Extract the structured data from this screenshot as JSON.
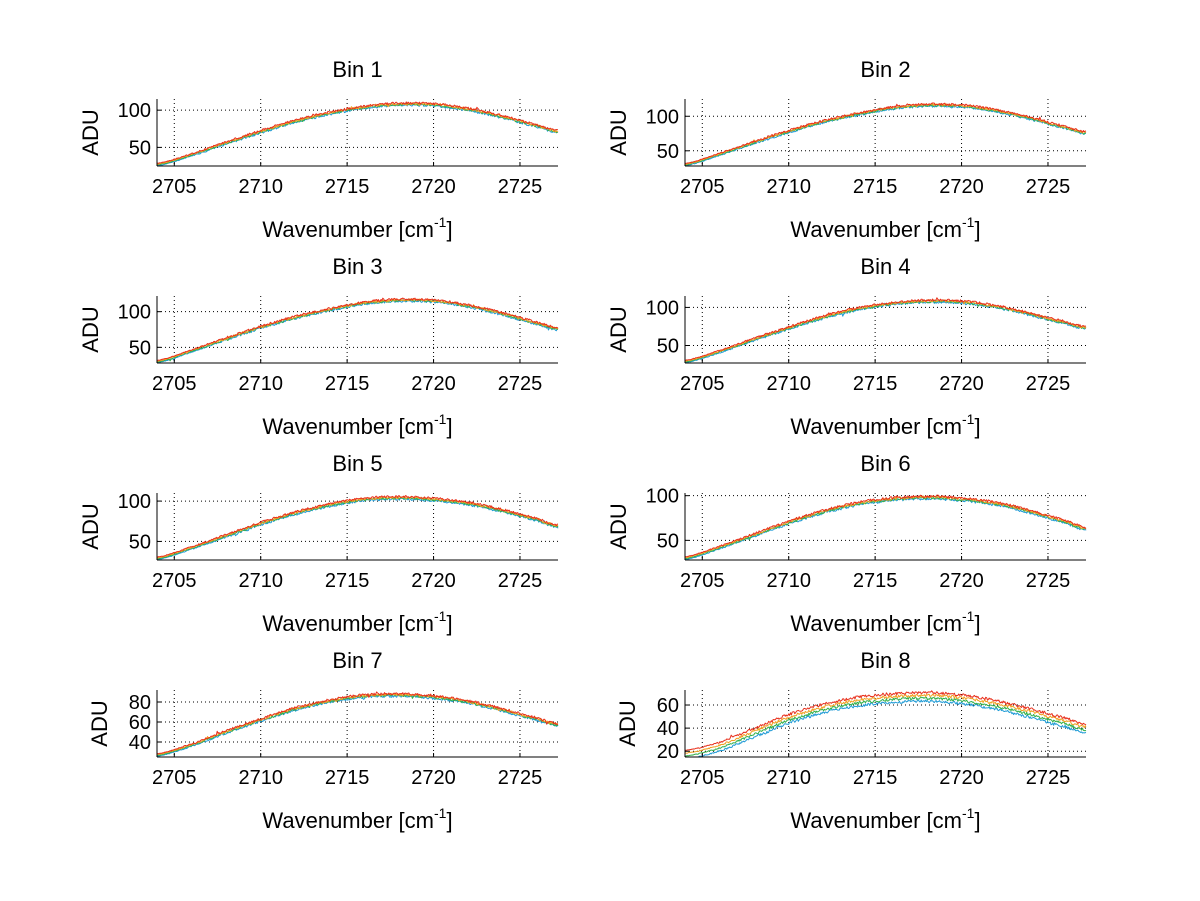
{
  "figure": {
    "background": "#ffffff"
  },
  "series_colors": [
    "#1f9bd6",
    "#33b04a",
    "#f0a020",
    "#e8301c"
  ],
  "chart_data": [
    {
      "type": "line",
      "title": "Bin 1",
      "xlabel": "Wavenumber [cm",
      "xlabel_sup": "-1",
      "xlabel_end": "]",
      "ylabel": "ADU",
      "xlim": [
        2704,
        2727.2
      ],
      "ylim": [
        25,
        115
      ],
      "xticks": [
        2705,
        2710,
        2715,
        2720,
        2725
      ],
      "yticks": [
        50,
        100
      ],
      "grid": true,
      "x": [
        2704,
        2706,
        2708,
        2710,
        2712,
        2714,
        2716,
        2718,
        2720,
        2722,
        2724,
        2726,
        2727.2
      ],
      "y": [
        27,
        40,
        56,
        71,
        85,
        96,
        104,
        108,
        107,
        101,
        91,
        79,
        71
      ],
      "series_count": 4,
      "series_spread": 1.0,
      "noise": 1.5
    },
    {
      "type": "line",
      "title": "Bin 2",
      "xlabel": "Wavenumber [cm",
      "xlabel_sup": "-1",
      "xlabel_end": "]",
      "ylabel": "ADU",
      "xlim": [
        2704,
        2727.2
      ],
      "ylim": [
        28,
        125
      ],
      "xticks": [
        2705,
        2710,
        2715,
        2720,
        2725
      ],
      "yticks": [
        50,
        100
      ],
      "grid": true,
      "x": [
        2704,
        2706,
        2708,
        2710,
        2712,
        2714,
        2716,
        2718,
        2720,
        2722,
        2724,
        2726,
        2727.2
      ],
      "y": [
        30,
        45,
        62,
        78,
        92,
        103,
        112,
        116,
        115,
        108,
        97,
        84,
        76
      ],
      "series_count": 4,
      "series_spread": 1.0,
      "noise": 1.6
    },
    {
      "type": "line",
      "title": "Bin 3",
      "xlabel": "Wavenumber [cm",
      "xlabel_sup": "-1",
      "xlabel_end": "]",
      "ylabel": "ADU",
      "xlim": [
        2704,
        2727.2
      ],
      "ylim": [
        28,
        122
      ],
      "xticks": [
        2705,
        2710,
        2715,
        2720,
        2725
      ],
      "yticks": [
        50,
        100
      ],
      "grid": true,
      "x": [
        2704,
        2706,
        2708,
        2710,
        2712,
        2714,
        2716,
        2718,
        2720,
        2722,
        2724,
        2726,
        2727.2
      ],
      "y": [
        30,
        45,
        62,
        78,
        92,
        103,
        112,
        116,
        115,
        108,
        97,
        84,
        76
      ],
      "series_count": 4,
      "series_spread": 1.0,
      "noise": 1.6
    },
    {
      "type": "line",
      "title": "Bin 4",
      "xlabel": "Wavenumber [cm",
      "xlabel_sup": "-1",
      "xlabel_end": "]",
      "ylabel": "ADU",
      "xlim": [
        2704,
        2727.2
      ],
      "ylim": [
        27,
        115
      ],
      "xticks": [
        2705,
        2710,
        2715,
        2720,
        2725
      ],
      "yticks": [
        50,
        100
      ],
      "grid": true,
      "x": [
        2704,
        2706,
        2708,
        2710,
        2712,
        2714,
        2716,
        2718,
        2720,
        2722,
        2724,
        2726,
        2727.2
      ],
      "y": [
        29,
        42,
        58,
        73,
        87,
        98,
        105,
        108,
        107,
        101,
        91,
        80,
        73
      ],
      "series_count": 4,
      "series_spread": 1.0,
      "noise": 1.5
    },
    {
      "type": "line",
      "title": "Bin 5",
      "xlabel": "Wavenumber [cm",
      "xlabel_sup": "-1",
      "xlabel_end": "]",
      "ylabel": "ADU",
      "xlim": [
        2704,
        2727.2
      ],
      "ylim": [
        27,
        110
      ],
      "xticks": [
        2705,
        2710,
        2715,
        2720,
        2725
      ],
      "yticks": [
        50,
        100
      ],
      "grid": true,
      "x": [
        2704,
        2706,
        2708,
        2710,
        2712,
        2714,
        2716,
        2718,
        2720,
        2722,
        2724,
        2726,
        2727.2
      ],
      "y": [
        29,
        42,
        57,
        72,
        85,
        95,
        102,
        104,
        102,
        97,
        88,
        77,
        69
      ],
      "series_count": 4,
      "series_spread": 1.0,
      "noise": 1.4
    },
    {
      "type": "line",
      "title": "Bin 6",
      "xlabel": "Wavenumber [cm",
      "xlabel_sup": "-1",
      "xlabel_end": "]",
      "ylabel": "ADU",
      "xlim": [
        2704,
        2727.2
      ],
      "ylim": [
        28,
        103
      ],
      "xticks": [
        2705,
        2710,
        2715,
        2720,
        2725
      ],
      "yticks": [
        50,
        100
      ],
      "grid": true,
      "x": [
        2704,
        2706,
        2708,
        2710,
        2712,
        2714,
        2716,
        2718,
        2720,
        2722,
        2724,
        2726,
        2727.2
      ],
      "y": [
        30,
        42,
        56,
        70,
        82,
        91,
        96,
        98,
        96,
        91,
        82,
        71,
        63
      ],
      "series_count": 4,
      "series_spread": 1.0,
      "noise": 1.4
    },
    {
      "type": "line",
      "title": "Bin 7",
      "xlabel": "Wavenumber [cm",
      "xlabel_sup": "-1",
      "xlabel_end": "]",
      "ylabel": "ADU",
      "xlim": [
        2704,
        2727.2
      ],
      "ylim": [
        25,
        92
      ],
      "xticks": [
        2705,
        2710,
        2715,
        2720,
        2725
      ],
      "yticks": [
        40,
        60,
        80
      ],
      "grid": true,
      "x": [
        2704,
        2706,
        2708,
        2710,
        2712,
        2714,
        2716,
        2718,
        2720,
        2722,
        2724,
        2726,
        2727.2
      ],
      "y": [
        27,
        37,
        50,
        62,
        73,
        81,
        86,
        87,
        85,
        80,
        72,
        63,
        57
      ],
      "series_count": 4,
      "series_spread": 0.8,
      "noise": 1.2
    },
    {
      "type": "line",
      "title": "Bin 8",
      "xlabel": "Wavenumber [cm",
      "xlabel_sup": "-1",
      "xlabel_end": "]",
      "ylabel": "ADU",
      "xlim": [
        2704,
        2727.2
      ],
      "ylim": [
        15,
        73
      ],
      "xticks": [
        2705,
        2710,
        2715,
        2720,
        2725
      ],
      "yticks": [
        20,
        40,
        60
      ],
      "grid": true,
      "x": [
        2704,
        2706,
        2708,
        2710,
        2712,
        2714,
        2716,
        2718,
        2720,
        2722,
        2724,
        2726,
        2727.2
      ],
      "y": [
        17,
        24,
        36,
        48,
        57,
        63,
        66,
        67,
        65,
        60,
        53,
        45,
        40
      ],
      "series_count": 4,
      "series_spread": 2.5,
      "noise": 1.2
    }
  ]
}
